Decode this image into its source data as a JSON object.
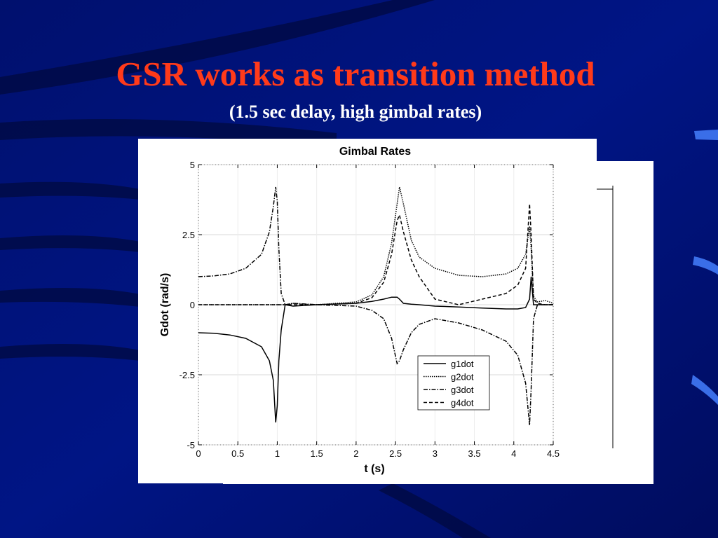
{
  "slide": {
    "title": "GSR works as transition method",
    "subtitle": "(1.5 sec delay, high gimbal rates)"
  },
  "chart_data": {
    "type": "line",
    "title": "Gimbal Rates",
    "x_label": "t (s)",
    "y_label": "Gdot (rad/s)",
    "x": [
      0,
      0.2,
      0.4,
      0.6,
      0.8,
      0.9,
      0.95,
      0.98,
      1.0,
      1.02,
      1.05,
      1.1,
      1.2,
      1.5,
      2.0,
      2.2,
      2.35,
      2.45,
      2.52,
      2.55,
      2.6,
      2.7,
      2.8,
      3.0,
      3.3,
      3.6,
      3.9,
      4.05,
      4.15,
      4.2,
      4.22,
      4.25,
      4.3,
      4.4,
      4.5
    ],
    "series": [
      {
        "name": "g1dot",
        "color": "#000000",
        "dash": "solid",
        "values": [
          -1,
          -1.02,
          -1.08,
          -1.2,
          -1.5,
          -2.0,
          -2.7,
          -4.2,
          -3.6,
          -2.0,
          -0.9,
          0,
          -0.05,
          0,
          0.05,
          0.12,
          0.2,
          0.27,
          0.27,
          0.2,
          0.05,
          0.02,
          0,
          -0.05,
          -0.08,
          -0.12,
          -0.15,
          -0.15,
          -0.1,
          0.2,
          1.0,
          0,
          0,
          0,
          0
        ]
      },
      {
        "name": "g2dot",
        "color": "#000000",
        "dash": "dotted",
        "values": [
          0,
          0,
          0,
          0,
          0,
          0,
          0,
          0,
          0,
          0,
          0,
          0,
          0.05,
          0,
          0.1,
          0.35,
          1.0,
          2.2,
          3.6,
          4.2,
          3.6,
          2.3,
          1.7,
          1.3,
          1.05,
          1.0,
          1.1,
          1.3,
          1.8,
          2.8,
          2.0,
          0.3,
          0.1,
          0.15,
          0.05
        ]
      },
      {
        "name": "g3dot",
        "color": "#000000",
        "dash": "dashdot",
        "values": [
          1.0,
          1.03,
          1.1,
          1.3,
          1.8,
          2.6,
          3.5,
          4.2,
          3.7,
          2.0,
          0.4,
          0,
          0.05,
          0,
          -0.05,
          -0.2,
          -0.5,
          -1.2,
          -2.1,
          -2.0,
          -1.6,
          -1.0,
          -0.7,
          -0.5,
          -0.65,
          -0.9,
          -1.3,
          -1.8,
          -2.8,
          -4.3,
          -3.0,
          -0.5,
          0,
          0,
          0
        ]
      },
      {
        "name": "g4dot",
        "color": "#000000",
        "dash": "dashed",
        "values": [
          0,
          0,
          0,
          0,
          0,
          0,
          0,
          0,
          0,
          0,
          0,
          0,
          0,
          0,
          0.05,
          0.25,
          0.8,
          1.8,
          3.0,
          3.2,
          2.6,
          1.6,
          1.0,
          0.2,
          0,
          0.2,
          0.4,
          0.7,
          1.3,
          3.6,
          2.5,
          0.2,
          0.05,
          0,
          0
        ]
      }
    ],
    "xlim": [
      0,
      4.5
    ],
    "xticks": [
      0,
      0.5,
      1,
      1.5,
      2,
      2.5,
      3,
      3.5,
      4,
      4.5
    ],
    "ylim": [
      -5,
      5
    ],
    "yticks": [
      -5,
      -2.5,
      0,
      2.5,
      5
    ],
    "grid": true,
    "legend": "lower-right"
  }
}
